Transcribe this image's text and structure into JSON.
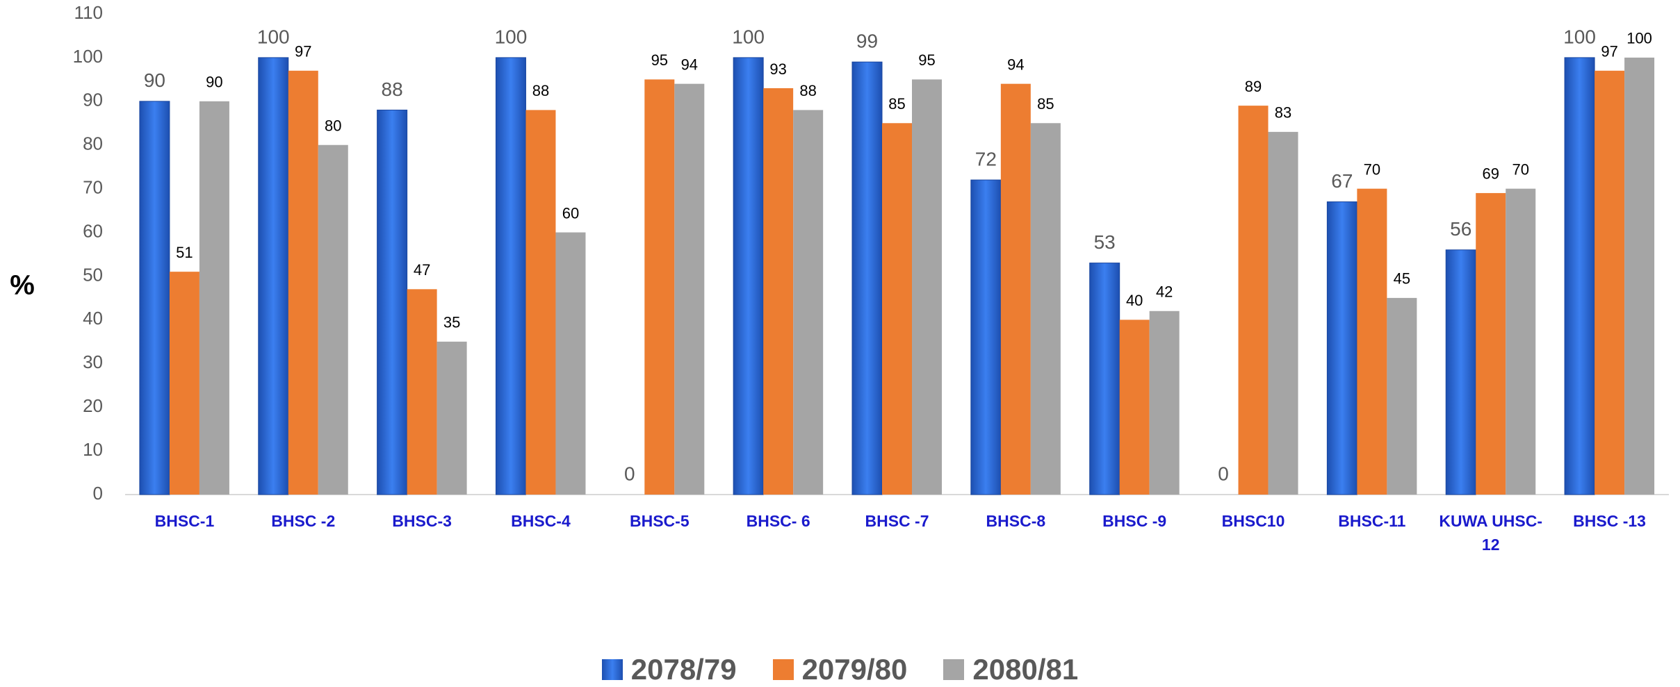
{
  "chart_data": {
    "type": "bar",
    "y_label": "%",
    "categories": [
      "BHSC-1",
      "BHSC -2",
      "BHSC-3",
      "BHSC-4",
      "BHSC-5",
      "BHSC- 6",
      "BHSC -7",
      "BHSC-8",
      "BHSC -9",
      "BHSC10",
      "BHSC-11",
      "KUWA UHSC-12",
      "BHSC -13"
    ],
    "series": [
      {
        "name": "2078/79",
        "color": "#2f6fdc",
        "values": [
          90,
          100,
          88,
          100,
          0,
          100,
          99,
          72,
          53,
          0,
          67,
          56,
          100
        ]
      },
      {
        "name": "2079/80",
        "color": "#ed7d31",
        "values": [
          51,
          97,
          47,
          88,
          95,
          93,
          85,
          94,
          40,
          89,
          70,
          69,
          97
        ]
      },
      {
        "name": "2080/81",
        "color": "#a5a5a5",
        "values": [
          90,
          80,
          35,
          60,
          94,
          88,
          95,
          85,
          42,
          83,
          45,
          70,
          100
        ]
      }
    ],
    "ylim": [
      0,
      110
    ],
    "yticks": [
      0,
      10,
      20,
      30,
      40,
      50,
      60,
      70,
      80,
      90,
      100,
      110
    ],
    "grid": false,
    "legend": "bottom"
  }
}
